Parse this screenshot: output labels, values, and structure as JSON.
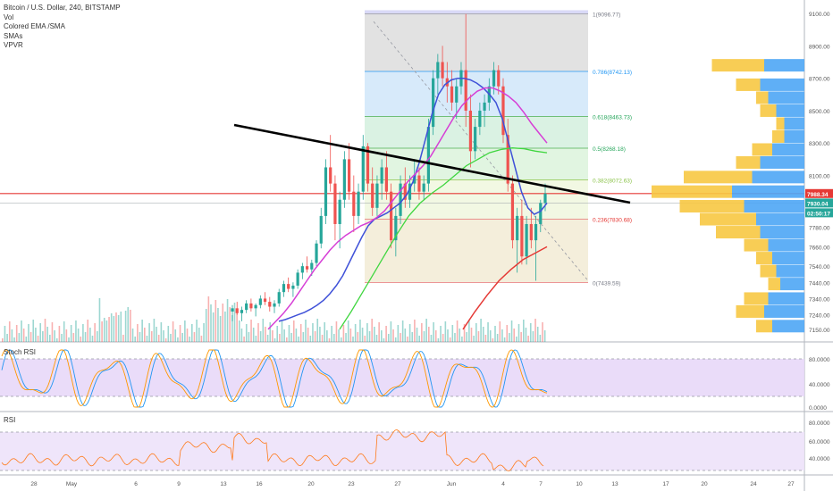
{
  "header": {
    "title": "Bitcoin / U.S. Dollar, 240, BITSTAMP",
    "indicators": [
      "Vol",
      "Colored EMA /SMA",
      "SMAs",
      "VPVR"
    ]
  },
  "stoch_pane": {
    "title": "Stoch RSI",
    "ticks": [
      "80.0000",
      "40.0000",
      "0.0000"
    ]
  },
  "rsi_pane": {
    "title": "RSI",
    "ticks": [
      "80.0000",
      "60.0000",
      "40.0000"
    ]
  },
  "price_badges": {
    "last": "7988.34",
    "mid": "7930.04",
    "timer": "02:50:17"
  },
  "colors": {
    "up": "#26a69a",
    "down": "#ef5350",
    "blue_ma": "#3f51d8",
    "pink_ma": "#d63fd6",
    "green_ma": "#3fd63f",
    "red_ma": "#e53935",
    "trendline": "#000000",
    "hline": "#e53935",
    "vpvr_up": "#4ea6f5",
    "vpvr_down": "#f7c842",
    "stoch_k": "#2196f3",
    "stoch_d": "#ff9800",
    "rsi": "#ff7a1a"
  },
  "chart_data": {
    "type": "candlestick",
    "symbol": "BTCUSD",
    "interval": "240",
    "exchange": "BITSTAMP",
    "ylim": [
      7100,
      9150
    ],
    "y_ticks": [
      9100,
      8900,
      8700,
      8500,
      8300,
      8100,
      7900,
      7780,
      7660,
      7540,
      7440,
      7340,
      7240,
      7150
    ],
    "y_tick_labels": [
      "9100.00",
      "8900.00",
      "8700.00",
      "8500.00",
      "8300.00",
      "8100.00",
      "",
      "7780.00",
      "7660.00",
      "7540.00",
      "7440.00",
      "7340.00",
      "7240.00",
      "7150.00"
    ],
    "x_ticks": [
      {
        "label": "28",
        "x": 38
      },
      {
        "label": "May",
        "x": 80
      },
      {
        "label": "6",
        "x": 152
      },
      {
        "label": "9",
        "x": 200
      },
      {
        "label": "13",
        "x": 250
      },
      {
        "label": "16",
        "x": 290
      },
      {
        "label": "20",
        "x": 348
      },
      {
        "label": "23",
        "x": 393
      },
      {
        "label": "27",
        "x": 445
      },
      {
        "label": "Jun",
        "x": 505
      },
      {
        "label": "4",
        "x": 563
      },
      {
        "label": "7",
        "x": 605
      },
      {
        "label": "10",
        "x": 648
      },
      {
        "label": "13",
        "x": 688
      },
      {
        "label": "17",
        "x": 745
      },
      {
        "label": "20",
        "x": 788
      },
      {
        "label": "24",
        "x": 843
      },
      {
        "label": "27",
        "x": 885
      }
    ],
    "fibonacci": [
      {
        "ratio": "1",
        "price": 9096.77,
        "label": "1(9096.77)"
      },
      {
        "ratio": "0.786",
        "price": 8742.13,
        "label": "0.786(8742.13)"
      },
      {
        "ratio": "0.618",
        "price": 8463.73,
        "label": "0.618(8463.73)"
      },
      {
        "ratio": "0.5",
        "price": 8268.18,
        "label": "0.5(8268.18)"
      },
      {
        "ratio": "0.382",
        "price": 8072.63,
        "label": "0.382(8072.63)"
      },
      {
        "ratio": "0.236",
        "price": 7830.68,
        "label": "0.236(7830.68)"
      },
      {
        "ratio": "0",
        "price": 7439.59,
        "label": "0(7439.59)"
      }
    ],
    "horizontal_line": 7988.34,
    "trendline": {
      "from": {
        "date": "May 13",
        "price": 8350
      },
      "to": {
        "date": "Jun 10",
        "price": 7850
      }
    },
    "candles": [
      [
        7260,
        7300,
        7200,
        7280
      ],
      [
        7280,
        7320,
        7240,
        7250
      ],
      [
        7250,
        7290,
        7200,
        7270
      ],
      [
        7270,
        7330,
        7250,
        7310
      ],
      [
        7310,
        7340,
        7260,
        7280
      ],
      [
        7280,
        7310,
        7230,
        7300
      ],
      [
        7300,
        7360,
        7280,
        7340
      ],
      [
        7340,
        7380,
        7300,
        7320
      ],
      [
        7320,
        7350,
        7260,
        7290
      ],
      [
        7290,
        7330,
        7250,
        7310
      ],
      [
        7310,
        7400,
        7290,
        7380
      ],
      [
        7380,
        7450,
        7350,
        7430
      ],
      [
        7430,
        7470,
        7380,
        7400
      ],
      [
        7400,
        7440,
        7350,
        7420
      ],
      [
        7420,
        7520,
        7400,
        7500
      ],
      [
        7500,
        7560,
        7460,
        7540
      ],
      [
        7540,
        7600,
        7500,
        7520
      ],
      [
        7520,
        7580,
        7480,
        7560
      ],
      [
        7560,
        7700,
        7540,
        7680
      ],
      [
        7680,
        7900,
        7650,
        7850
      ],
      [
        7850,
        8200,
        7800,
        8150
      ],
      [
        8150,
        8350,
        8000,
        8050
      ],
      [
        8050,
        8100,
        7700,
        7800
      ],
      [
        7800,
        8000,
        7650,
        7950
      ],
      [
        7950,
        8250,
        7900,
        8200
      ],
      [
        8200,
        8300,
        7950,
        8000
      ],
      [
        8000,
        8100,
        7750,
        7850
      ],
      [
        7850,
        8050,
        7800,
        8000
      ],
      [
        8000,
        8350,
        7950,
        8280
      ],
      [
        8280,
        8300,
        8000,
        8050
      ],
      [
        8050,
        8150,
        7850,
        7900
      ],
      [
        7900,
        8100,
        7850,
        8050
      ],
      [
        8050,
        8200,
        7950,
        8150
      ],
      [
        8150,
        8250,
        7950,
        8000
      ],
      [
        8000,
        8050,
        7650,
        7700
      ],
      [
        7700,
        7900,
        7600,
        7850
      ],
      [
        7850,
        8100,
        7800,
        8050
      ],
      [
        8050,
        8150,
        7900,
        7950
      ],
      [
        7950,
        8100,
        7900,
        8050
      ],
      [
        8050,
        8200,
        8000,
        8100
      ],
      [
        8100,
        8150,
        7950,
        8000
      ],
      [
        8000,
        8100,
        7950,
        8050
      ],
      [
        8050,
        8450,
        8000,
        8400
      ],
      [
        8400,
        8750,
        8350,
        8700
      ],
      [
        8700,
        8850,
        8600,
        8800
      ],
      [
        8800,
        8900,
        8650,
        8700
      ],
      [
        8700,
        8800,
        8550,
        8650
      ],
      [
        8650,
        8750,
        8500,
        8550
      ],
      [
        8550,
        8700,
        8450,
        8650
      ],
      [
        8650,
        8800,
        8600,
        8750
      ],
      [
        8750,
        9097,
        8400,
        8500
      ],
      [
        8500,
        8600,
        8150,
        8250
      ],
      [
        8250,
        8450,
        8200,
        8400
      ],
      [
        8400,
        8550,
        8350,
        8500
      ],
      [
        8500,
        8600,
        8400,
        8550
      ],
      [
        8550,
        8700,
        8500,
        8650
      ],
      [
        8650,
        8800,
        8600,
        8750
      ],
      [
        8750,
        8780,
        8600,
        8650
      ],
      [
        8650,
        8700,
        8300,
        8350
      ],
      [
        8350,
        8450,
        8000,
        8050
      ],
      [
        8050,
        8100,
        7650,
        7700
      ],
      [
        7700,
        7900,
        7500,
        7850
      ],
      [
        7850,
        7950,
        7550,
        7600
      ],
      [
        7600,
        7850,
        7550,
        7800
      ],
      [
        7800,
        7900,
        7650,
        7700
      ],
      [
        7700,
        7850,
        7450,
        7800
      ],
      [
        7800,
        7950,
        7750,
        7930
      ],
      [
        7930,
        8050,
        7880,
        7988
      ]
    ],
    "series": [
      {
        "name": "blue_ma",
        "values": [
          7200,
          7210,
          7225,
          7240,
          7255,
          7275,
          7300,
          7330,
          7370,
          7420,
          7480,
          7560,
          7640,
          7720,
          7790,
          7830,
          7850,
          7870,
          7900,
          7930,
          7980,
          8060,
          8180,
          8330,
          8480,
          8600,
          8660,
          8690,
          8700,
          8700,
          8690,
          8670,
          8640,
          8600,
          8550,
          8450,
          8300,
          8150,
          8000,
          7900,
          7860,
          7880,
          7930
        ]
      },
      {
        "name": "pink_ma",
        "values": [
          7150,
          7200,
          7250,
          7310,
          7380,
          7450,
          7520,
          7580,
          7640,
          7690,
          7730,
          7760,
          7790,
          7810,
          7840,
          7880,
          7940,
          8000,
          8060,
          8110,
          8160,
          8220,
          8300,
          8380,
          8460,
          8530,
          8580,
          8620,
          8640,
          8640,
          8620,
          8590,
          8550,
          8490,
          8420,
          8360,
          8300
        ]
      },
      {
        "name": "green_ma",
        "values": [
          7150,
          7260,
          7380,
          7500,
          7620,
          7740,
          7850,
          7930,
          7990,
          8040,
          8100,
          8160,
          8200,
          8240,
          8260,
          8270,
          8265,
          8250,
          8240
        ]
      },
      {
        "name": "red_ma",
        "values": [
          7150,
          7260,
          7360,
          7450,
          7520,
          7580,
          7620,
          7660
        ]
      }
    ],
    "volume_profile": [
      {
        "price": 8780,
        "up": 0.5,
        "down": 0.65
      },
      {
        "price": 8660,
        "up": 0.55,
        "down": 0.3
      },
      {
        "price": 8580,
        "up": 0.45,
        "down": 0.15
      },
      {
        "price": 8500,
        "up": 0.35,
        "down": 0.2
      },
      {
        "price": 8420,
        "up": 0.25,
        "down": 0.1
      },
      {
        "price": 8340,
        "up": 0.25,
        "down": 0.15
      },
      {
        "price": 8260,
        "up": 0.4,
        "down": 0.25
      },
      {
        "price": 8180,
        "up": 0.55,
        "down": 0.3
      },
      {
        "price": 8090,
        "up": 0.65,
        "down": 0.85
      },
      {
        "price": 8000,
        "up": 0.9,
        "down": 1.0
      },
      {
        "price": 7910,
        "up": 0.75,
        "down": 0.8
      },
      {
        "price": 7830,
        "up": 0.6,
        "down": 0.7
      },
      {
        "price": 7750,
        "up": 0.55,
        "down": 0.55
      },
      {
        "price": 7670,
        "up": 0.45,
        "down": 0.3
      },
      {
        "price": 7590,
        "up": 0.4,
        "down": 0.2
      },
      {
        "price": 7510,
        "up": 0.35,
        "down": 0.2
      },
      {
        "price": 7430,
        "up": 0.3,
        "down": 0.15
      },
      {
        "price": 7340,
        "up": 0.45,
        "down": 0.3
      },
      {
        "price": 7260,
        "up": 0.5,
        "down": 0.35
      },
      {
        "price": 7170,
        "up": 0.4,
        "down": 0.2
      }
    ]
  }
}
